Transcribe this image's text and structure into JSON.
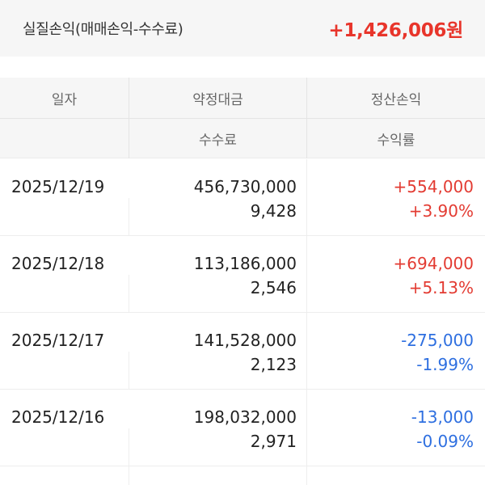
{
  "summary": {
    "label": "실질손익(매매손익-수수료)",
    "value": "+1,426,006원"
  },
  "table": {
    "headers": {
      "date": "일자",
      "trade_amount": "약정대금",
      "settlement_pl": "정산손익",
      "fee": "수수료",
      "return_rate": "수익률"
    },
    "rows": [
      {
        "date": "2025/12/19",
        "amount": "456,730,000",
        "fee": "9,428",
        "pl": "+554,000",
        "rate": "+3.90%",
        "sign": "pos"
      },
      {
        "date": "2025/12/18",
        "amount": "113,186,000",
        "fee": "2,546",
        "pl": "+694,000",
        "rate": "+5.13%",
        "sign": "pos"
      },
      {
        "date": "2025/12/17",
        "amount": "141,528,000",
        "fee": "2,123",
        "pl": "-275,000",
        "rate": "-1.99%",
        "sign": "neg"
      },
      {
        "date": "2025/12/16",
        "amount": "198,032,000",
        "fee": "2,971",
        "pl": "-13,000",
        "rate": "-0.09%",
        "sign": "neg"
      }
    ]
  },
  "colors": {
    "positive": "#e33b32",
    "negative": "#2e6fe0",
    "summary_value": "#e8352b"
  }
}
